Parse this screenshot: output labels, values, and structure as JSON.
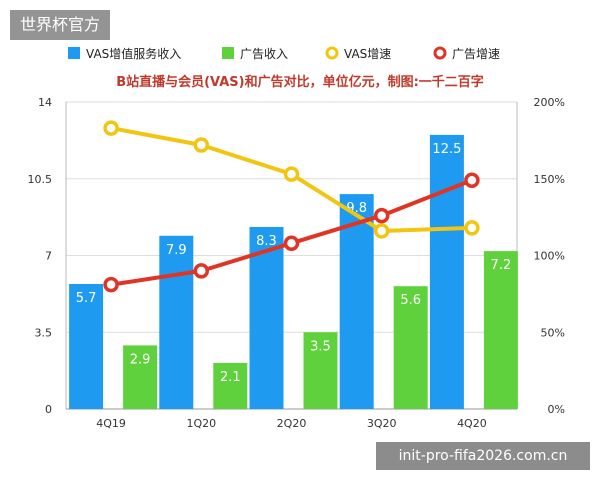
{
  "watermark_top": "世界杯官方",
  "watermark_bottom": "init-pro-fifa2026.com.cn",
  "colors": {
    "vas": "#1e9bf0",
    "ads": "#5fd13c",
    "vas_growth": "#f2c511",
    "ads_growth": "#e03424",
    "title": "#c0392b"
  },
  "chart_data": {
    "type": "bar",
    "title": "B站直播与会员(VAS)和广告对比，单位亿元，制图:一千二百字",
    "categories": [
      "4Q19",
      "1Q20",
      "2Q20",
      "3Q20",
      "4Q20"
    ],
    "ylim": [
      0,
      14
    ],
    "y_ticks": [
      "0",
      "3.5",
      "7",
      "10.5",
      "14"
    ],
    "y2lim": [
      0,
      200
    ],
    "y2_ticks": [
      "0%",
      "50%",
      "100%",
      "150%",
      "200%"
    ],
    "legend_position": "top",
    "series": [
      {
        "name": "VAS增值服务收入",
        "kind": "bar",
        "axis": "left",
        "color": "#1e9bf0",
        "values": [
          5.7,
          7.9,
          8.3,
          9.8,
          12.5
        ],
        "labels": [
          "5.7",
          "7.9",
          "8.3",
          "9.8",
          "12.5"
        ]
      },
      {
        "name": "广告收入",
        "kind": "bar",
        "axis": "left",
        "color": "#5fd13c",
        "values": [
          2.9,
          2.1,
          3.5,
          5.6,
          7.2
        ],
        "labels": [
          "2.9",
          "2.1",
          "3.5",
          "5.6",
          "7.2"
        ]
      },
      {
        "name": "VAS增速",
        "kind": "line",
        "axis": "right",
        "color": "#f2c511",
        "values": [
          183,
          172,
          153,
          116,
          118
        ]
      },
      {
        "name": "广告增速",
        "kind": "line",
        "axis": "right",
        "color": "#e03424",
        "values": [
          81,
          90,
          108,
          126,
          149
        ]
      }
    ]
  }
}
